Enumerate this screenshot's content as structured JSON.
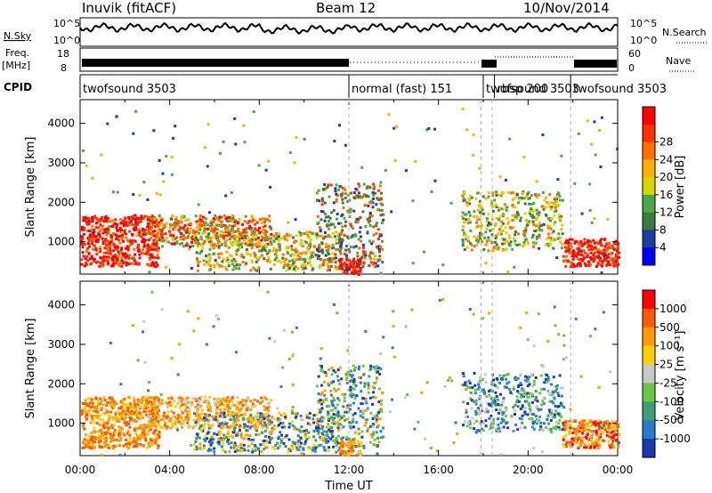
{
  "header": {
    "station": "Inuvik (fitACF)",
    "beam": "Beam 12",
    "date": "10/Nov/2014"
  },
  "strip_labels": {
    "nsky": "N.Sky",
    "nsky_ticks": [
      "10^5",
      "10^0"
    ],
    "freq": "Freq.",
    "freq_unit": "[MHz]",
    "freq_ticks": [
      "18",
      "8"
    ],
    "cpid": "CPID",
    "nsearch": "N.Search",
    "nsearch_ticks": [
      "10^5",
      "10^0"
    ],
    "nave": "Nave",
    "nave_ticks": [
      "60",
      "0"
    ]
  },
  "cpid_segments": [
    {
      "label": "twofsound 3503",
      "start_hour": 0.0
    },
    {
      "label": "normal (fast) 151",
      "start_hour": 12.0
    },
    {
      "label": "twofsound 3503",
      "start_hour": 18.0
    },
    {
      "label": "rbsp 200",
      "start_hour": 18.5
    },
    {
      "label": "twofsound 3503",
      "start_hour": 21.9
    }
  ],
  "chart_data": [
    {
      "type": "heatmap",
      "name": "Power",
      "ylabel": "Slant Range [km]",
      "yticks": [
        1000,
        2000,
        3000,
        4000
      ],
      "ylim": [
        180,
        4600
      ],
      "xlim_hours": [
        0,
        24
      ],
      "xticks": [
        "00:00",
        "04:00",
        "08:00",
        "12:00",
        "16:00",
        "20:00",
        "00:00"
      ],
      "colorbar": {
        "label": "Power [dB]",
        "ticks": [
          "4",
          "8",
          "12",
          "16",
          "20",
          "24",
          "28"
        ],
        "colors": [
          "#0000ff",
          "#1c3ea0",
          "#3a7a3a",
          "#4aa848",
          "#d8d800",
          "#ffb000",
          "#ff7000",
          "#ff3000",
          "#ff0000"
        ]
      }
    },
    {
      "type": "heatmap",
      "name": "Velocity",
      "ylabel": "Slant Range [km]",
      "yticks": [
        1000,
        2000,
        3000,
        4000
      ],
      "ylim": [
        180,
        4600
      ],
      "xlim_hours": [
        0,
        24
      ],
      "xticks": [
        "00:00",
        "04:00",
        "08:00",
        "12:00",
        "16:00",
        "20:00",
        "00:00"
      ],
      "xlabel": "Time UT",
      "colorbar": {
        "label": "Velocity [m s⁻¹]",
        "ticks": [
          "1000",
          "500",
          "100",
          "25",
          "-25",
          "-100",
          "-500",
          "-1000"
        ],
        "colors": [
          "#1a3aa8",
          "#2a7acc",
          "#3aa07a",
          "#6ac840",
          "#c8c8c8",
          "#ffd000",
          "#ff9a00",
          "#ff5a00",
          "#ff0000"
        ]
      }
    }
  ],
  "colors": {
    "axis": "#000000",
    "grid_dashed": "#b0b0b0"
  }
}
